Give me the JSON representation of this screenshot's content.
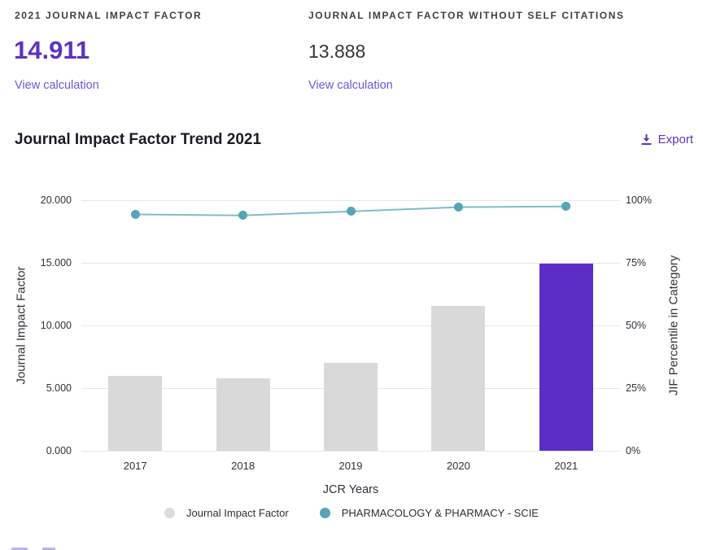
{
  "metrics": {
    "jif": {
      "label": "2021 JOURNAL IMPACT FACTOR",
      "value": "14.911",
      "link": "View calculation"
    },
    "jif_without_self": {
      "label": "JOURNAL IMPACT FACTOR WITHOUT SELF CITATIONS",
      "value": "13.888",
      "link": "View calculation"
    }
  },
  "section": {
    "title": "Journal Impact Factor Trend 2021",
    "export_label": "Export"
  },
  "colors": {
    "accent_purple": "#5e33bf",
    "bar_highlight": "#5b2fc6",
    "bar_default": "#d9d9d9",
    "line_teal": "#55a5b6",
    "line_stroke": "#7fbdc9",
    "link_purple": "#6a5ad4",
    "legend_gray_dot": "#dcdcdc",
    "gridline": "#e6e6e6"
  },
  "chart_data": {
    "type": "bar",
    "title": "Journal Impact Factor Trend 2021",
    "categories": [
      "2017",
      "2018",
      "2019",
      "2020",
      "2021"
    ],
    "series": [
      {
        "name": "Journal Impact Factor",
        "type": "bar",
        "axis": "left",
        "values": [
          5.99,
          5.78,
          7.04,
          11.58,
          14.911
        ],
        "highlight_index": 4
      },
      {
        "name": "PHARMACOLOGY & PHARMACY - SCIE",
        "type": "line",
        "axis": "right",
        "values": [
          94.3,
          93.9,
          95.5,
          97.2,
          97.5
        ]
      }
    ],
    "xlabel": "JCR Years",
    "ylabel_left": "Journal Impact Factor",
    "ylabel_right": "JIF Percentile in Category",
    "y_ticks_left": [
      "0.000",
      "5.000",
      "10.000",
      "15.000",
      "20.000"
    ],
    "y_ticks_right": [
      "0%",
      "25%",
      "50%",
      "75%",
      "100%"
    ],
    "ylim_left": [
      0,
      20
    ],
    "ylim_right": [
      0,
      100
    ],
    "grid": true,
    "legend_position": "bottom"
  }
}
